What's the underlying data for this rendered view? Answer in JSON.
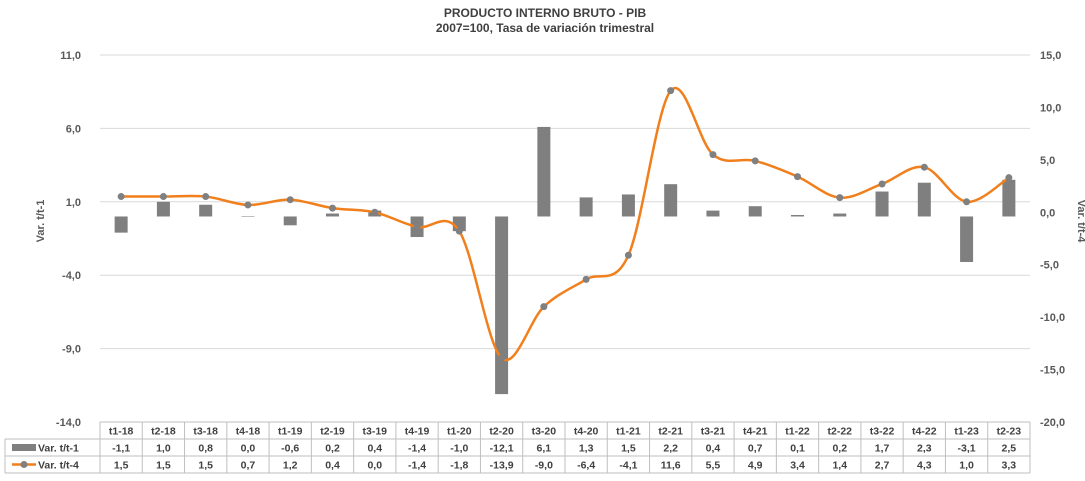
{
  "chart_data": {
    "type": "bar",
    "title": "PRODUCTO INTERNO BRUTO - PIB",
    "subtitle": "2007=100, Tasa de variación trimestral",
    "categories": [
      "t1-18",
      "t2-18",
      "t3-18",
      "t4-18",
      "t1-19",
      "t2-19",
      "t3-19",
      "t4-19",
      "t1-20",
      "t2-20",
      "t3-20",
      "t4-20",
      "t1-21",
      "t2-21",
      "t3-21",
      "t4-21",
      "t1-22",
      "t2-22",
      "t3-22",
      "t4-22",
      "t1-23",
      "t2-23"
    ],
    "series": [
      {
        "name": "Var. t/t-1",
        "type": "bar",
        "axis": "left",
        "color": "#7f7f7f",
        "values": [
          -1.1,
          1.0,
          0.8,
          0.0,
          -0.6,
          0.2,
          0.4,
          -1.4,
          -1.0,
          -12.1,
          6.1,
          1.3,
          1.5,
          2.2,
          0.4,
          0.7,
          0.1,
          0.2,
          1.7,
          2.3,
          -3.1,
          2.5
        ],
        "labels": [
          "-1,1",
          "1,0",
          "0,8",
          "0,0",
          "-0,6",
          "0,2",
          "0,4",
          "-1,4",
          "-1,0",
          "-12,1",
          "6,1",
          "1,3",
          "1,5",
          "2,2",
          "0,4",
          "0,7",
          "0,1",
          "0,2",
          "1,7",
          "2,3",
          "-3,1",
          "2,5"
        ]
      },
      {
        "name": "Var. t/t-4",
        "type": "line",
        "axis": "right",
        "color": "#f07f1c",
        "marker_color": "#808080",
        "values": [
          1.5,
          1.5,
          1.5,
          0.7,
          1.2,
          0.4,
          0.0,
          -1.4,
          -1.8,
          -13.9,
          -9.0,
          -6.4,
          -4.1,
          11.6,
          5.5,
          4.9,
          3.4,
          1.4,
          2.7,
          4.3,
          1.0,
          3.3
        ],
        "labels": [
          "1,5",
          "1,5",
          "1,5",
          "0,7",
          "1,2",
          "0,4",
          "0,0",
          "-1,4",
          "-1,8",
          "-13,9",
          "-9,0",
          "-6,4",
          "-4,1",
          "11,6",
          "5,5",
          "4,9",
          "3,4",
          "1,4",
          "2,7",
          "4,3",
          "1,0",
          "3,3"
        ]
      }
    ],
    "y_left": {
      "label": "Var. t/t-1",
      "ylim": [
        -14.0,
        11.0
      ],
      "ticks": [
        11.0,
        6.0,
        1.0,
        -4.0,
        -9.0,
        -14.0
      ],
      "tick_labels": [
        "11,0",
        "6,0",
        "1,0",
        "-4,0",
        "-9,0",
        "-14,0"
      ]
    },
    "y_right": {
      "label": "Var. t/t-4",
      "ylim": [
        -20.0,
        15.0
      ],
      "ticks": [
        15.0,
        10.0,
        5.0,
        0.0,
        -5.0,
        -10.0,
        -15.0,
        -20.0
      ],
      "tick_labels": [
        "15,0",
        "10,0",
        "5,0",
        "0,0",
        "-5,0",
        "-10,0",
        "-15,0",
        "-20,0"
      ]
    },
    "grid": true,
    "legend": "data-table"
  }
}
